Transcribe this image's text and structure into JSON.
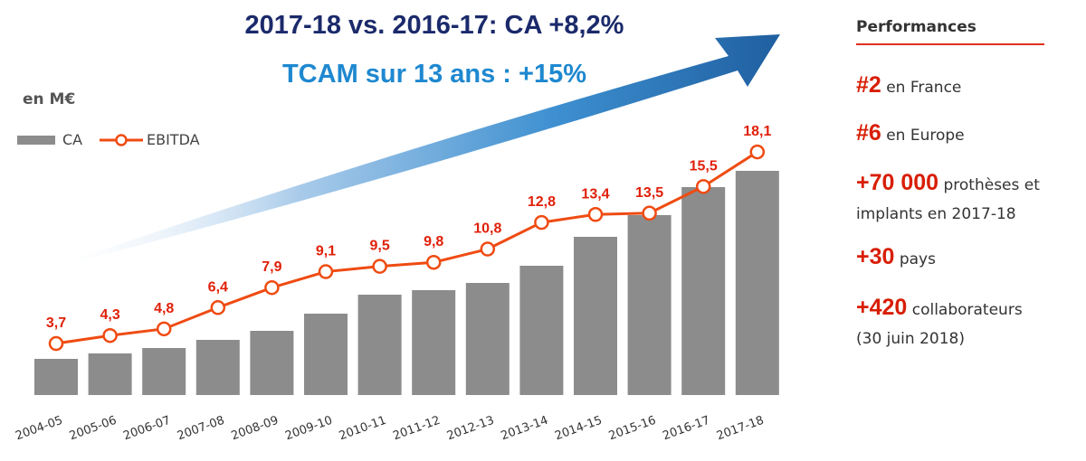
{
  "title": "2017-18 vs. 2016-17: CA +8,2%",
  "subtitle": "TCAM sur 13 ans : +15%",
  "unit_label": "en M€",
  "colors": {
    "ca": "#8c8c8c",
    "ebitda": "#ef4b12",
    "label": "#e0200a",
    "title": "#1b2a6b",
    "subtitle": "#1e88d0",
    "arrow": "#1f5fa0"
  },
  "chart_data": {
    "type": "bar",
    "categories": [
      "2004-05",
      "2005-06",
      "2006-07",
      "2007-08",
      "2008-09",
      "2009-10",
      "2010-11",
      "2011-12",
      "2012-13",
      "2013-14",
      "2014-15",
      "2015-16",
      "2016-17",
      "2017-18"
    ],
    "series": [
      {
        "name": "CA",
        "type": "bar",
        "values": [
          20,
          23,
          26,
          30.5,
          35.5,
          45,
          55.5,
          58,
          62,
          71.5,
          87.5,
          99.5,
          115,
          124
        ],
        "estimated": true
      },
      {
        "name": "EBITDA",
        "type": "line",
        "values": [
          3.7,
          4.3,
          4.8,
          6.4,
          7.9,
          9.1,
          9.5,
          9.8,
          10.8,
          12.8,
          13.4,
          13.5,
          15.5,
          18.1
        ],
        "labels": [
          "3,7",
          "4,3",
          "4,8",
          "6,4",
          "7,9",
          "9,1",
          "9,5",
          "9,8",
          "10,8",
          "12,8",
          "13,4",
          "13,5",
          "15,5",
          "18,1"
        ]
      }
    ],
    "legend": "top-left",
    "grid": false
  },
  "sidebar": {
    "heading": "Performances",
    "items": [
      {
        "value": "#2",
        "text": "en France"
      },
      {
        "value": "#6",
        "text": "en Europe"
      },
      {
        "value": "+70 000",
        "text": "prothèses et",
        "text2": "implants en 2017-18"
      },
      {
        "value": "+30",
        "text": "pays"
      },
      {
        "value": "+420",
        "text": "collaborateurs",
        "text2": "(30 juin 2018)"
      }
    ]
  }
}
